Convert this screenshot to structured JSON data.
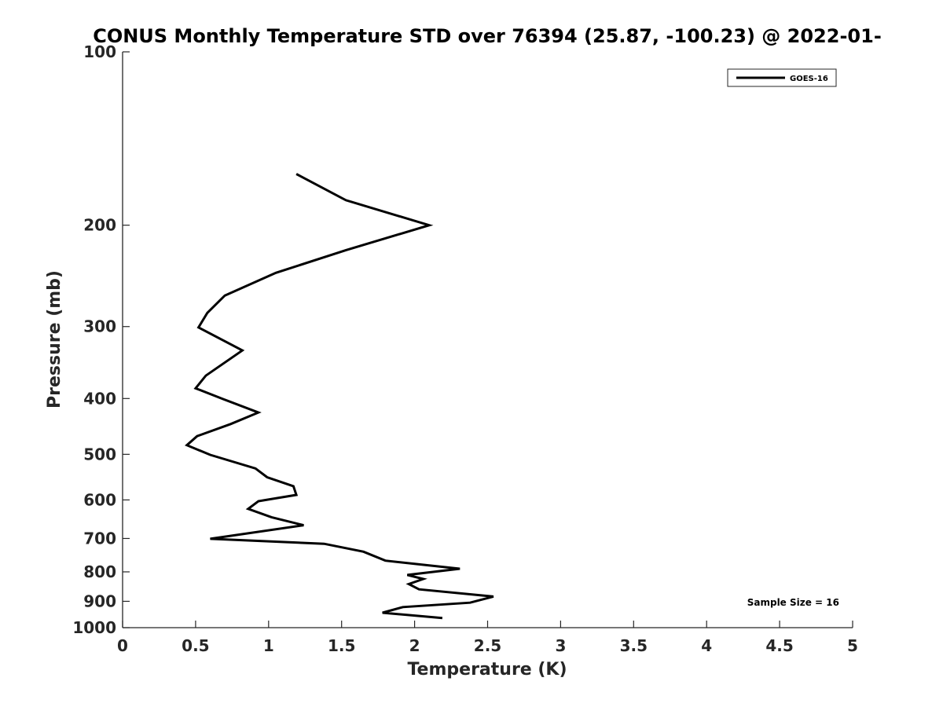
{
  "chart_data": {
    "type": "line",
    "title": "CONUS Monthly Temperature STD over 76394 (25.87, -100.23) @ 2022-01-",
    "xlabel": "Temperature (K)",
    "ylabel": "Pressure (mb)",
    "xlim": [
      0,
      5
    ],
    "ylim": [
      100,
      1000
    ],
    "yscale": "log",
    "yreversed": true,
    "xticks": [
      0,
      0.5,
      1,
      1.5,
      2,
      2.5,
      3,
      3.5,
      4,
      4.5,
      5
    ],
    "xtick_labels": [
      "0",
      "0.5",
      "1",
      "1.5",
      "2",
      "2.5",
      "3",
      "3.5",
      "4",
      "4.5",
      "5"
    ],
    "yticks": [
      100,
      200,
      300,
      400,
      500,
      600,
      700,
      800,
      900,
      1000
    ],
    "ytick_labels": [
      "100",
      "200",
      "300",
      "400",
      "500",
      "600",
      "700",
      "800",
      "900",
      "1000"
    ],
    "legend": {
      "position": "top-right",
      "entries": [
        "GOES-16"
      ]
    },
    "annotation": "Sample Size = 16",
    "series": [
      {
        "name": "GOES-16",
        "color": "#000000",
        "points": [
          {
            "t": 1.19,
            "p": 163
          },
          {
            "t": 1.53,
            "p": 181
          },
          {
            "t": 2.1,
            "p": 200
          },
          {
            "t": 1.53,
            "p": 221
          },
          {
            "t": 1.05,
            "p": 242
          },
          {
            "t": 0.7,
            "p": 265
          },
          {
            "t": 0.58,
            "p": 284
          },
          {
            "t": 0.52,
            "p": 301
          },
          {
            "t": 0.82,
            "p": 330
          },
          {
            "t": 0.57,
            "p": 365
          },
          {
            "t": 0.5,
            "p": 384
          },
          {
            "t": 0.69,
            "p": 401
          },
          {
            "t": 0.93,
            "p": 423
          },
          {
            "t": 0.74,
            "p": 443
          },
          {
            "t": 0.51,
            "p": 465
          },
          {
            "t": 0.44,
            "p": 482
          },
          {
            "t": 0.6,
            "p": 501
          },
          {
            "t": 0.91,
            "p": 529
          },
          {
            "t": 0.99,
            "p": 548
          },
          {
            "t": 1.17,
            "p": 568
          },
          {
            "t": 1.19,
            "p": 588
          },
          {
            "t": 0.93,
            "p": 603
          },
          {
            "t": 0.86,
            "p": 622
          },
          {
            "t": 1.02,
            "p": 643
          },
          {
            "t": 1.24,
            "p": 664
          },
          {
            "t": 0.6,
            "p": 701
          },
          {
            "t": 1.38,
            "p": 715
          },
          {
            "t": 1.65,
            "p": 738
          },
          {
            "t": 1.8,
            "p": 765
          },
          {
            "t": 2.31,
            "p": 790
          },
          {
            "t": 1.95,
            "p": 810
          },
          {
            "t": 2.06,
            "p": 823
          },
          {
            "t": 1.96,
            "p": 840
          },
          {
            "t": 2.03,
            "p": 858
          },
          {
            "t": 2.54,
            "p": 883
          },
          {
            "t": 2.38,
            "p": 905
          },
          {
            "t": 1.92,
            "p": 921
          },
          {
            "t": 1.78,
            "p": 942
          },
          {
            "t": 2.19,
            "p": 962
          }
        ]
      }
    ]
  }
}
